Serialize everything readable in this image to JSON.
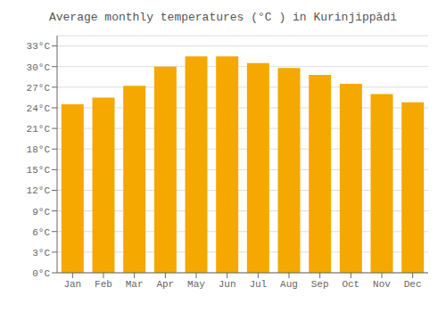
{
  "chart_data": {
    "type": "bar",
    "title": "Average monthly temperatures (°C ) in Kurinjippādi",
    "categories": [
      "Jan",
      "Feb",
      "Mar",
      "Apr",
      "May",
      "Jun",
      "Jul",
      "Aug",
      "Sep",
      "Oct",
      "Nov",
      "Dec"
    ],
    "values": [
      24.5,
      25.5,
      27.2,
      30.0,
      31.5,
      31.5,
      30.5,
      29.8,
      28.8,
      27.5,
      26.0,
      24.8
    ],
    "color": "#F5A800",
    "ylim": [
      0,
      34.5
    ],
    "yticks": [
      {
        "value": 0,
        "label": "0°C"
      },
      {
        "value": 3,
        "label": "3°C"
      },
      {
        "value": 6,
        "label": "6°C"
      },
      {
        "value": 9,
        "label": "9°C"
      },
      {
        "value": 12,
        "label": "12°C"
      },
      {
        "value": 15,
        "label": "15°C"
      },
      {
        "value": 18,
        "label": "18°C"
      },
      {
        "value": 21,
        "label": "21°C"
      },
      {
        "value": 24,
        "label": "24°C"
      },
      {
        "value": 27,
        "label": "27°C"
      },
      {
        "value": 30,
        "label": "30°C"
      },
      {
        "value": 33,
        "label": "33°C"
      }
    ],
    "grid": true
  }
}
